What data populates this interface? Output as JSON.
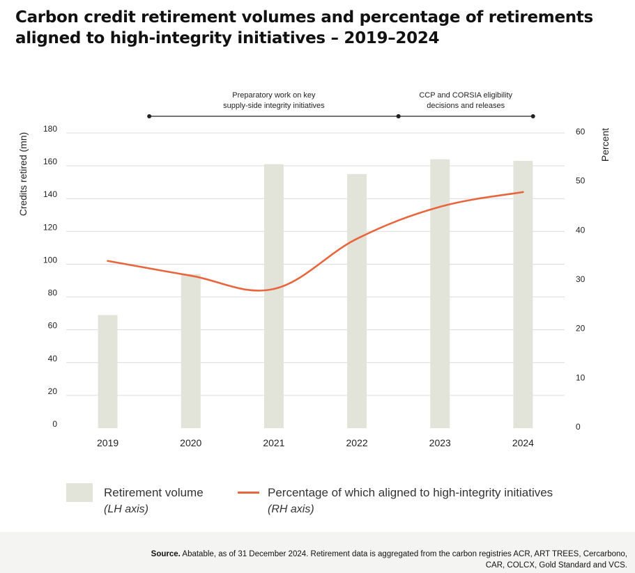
{
  "chart_data": {
    "type": "bar+line",
    "title": "Carbon credit retirement volumes and percentage of retirements aligned to high-integrity initiatives – 2019–2024",
    "categories": [
      "2019",
      "2020",
      "2021",
      "2022",
      "2023",
      "2024"
    ],
    "y_left": {
      "label": "Credits retired (mn)",
      "ticks": [
        "0",
        "20",
        "40",
        "60",
        "80",
        "100",
        "120",
        "140",
        "160",
        "180"
      ],
      "range": [
        0,
        180
      ]
    },
    "y_right": {
      "label": "Percent",
      "ticks": [
        "0",
        "10",
        "20",
        "30",
        "40",
        "50",
        "60"
      ],
      "range": [
        0,
        60
      ]
    },
    "series": [
      {
        "name": "Retirement volume",
        "type": "bar",
        "axis": "left",
        "color": "#e2e4d9",
        "values": [
          69,
          94,
          161,
          155,
          164,
          163
        ]
      },
      {
        "name": "Percentage of which aligned to high-integrity initiatives",
        "type": "line",
        "axis": "right",
        "color": "#e8663d",
        "values": [
          34,
          31,
          28.3,
          38.5,
          45,
          48
        ]
      }
    ],
    "annotations": [
      {
        "text_lines": [
          "Preparatory work on key",
          "supply-side integrity initiatives"
        ],
        "from": 0.5,
        "to": 3.5
      },
      {
        "text_lines": [
          "CCP and CORSIA eligibility",
          "decisions and releases"
        ],
        "from": 3.5,
        "to": 5.12
      }
    ],
    "grid": true,
    "legend_position": "bottom"
  },
  "legend": {
    "bar_label": "Retirement volume",
    "bar_sub": "(LH axis)",
    "line_label": "Percentage of which aligned to high-integrity initiatives",
    "line_sub": "(RH axis)"
  },
  "source": {
    "bold": "Source.",
    "text": " Abatable, as of 31 December 2024. Retirement data is aggregated from the carbon registries ACR, ART TREES, Cercarbono, CAR, COLCX, Gold Standard and VCS."
  }
}
